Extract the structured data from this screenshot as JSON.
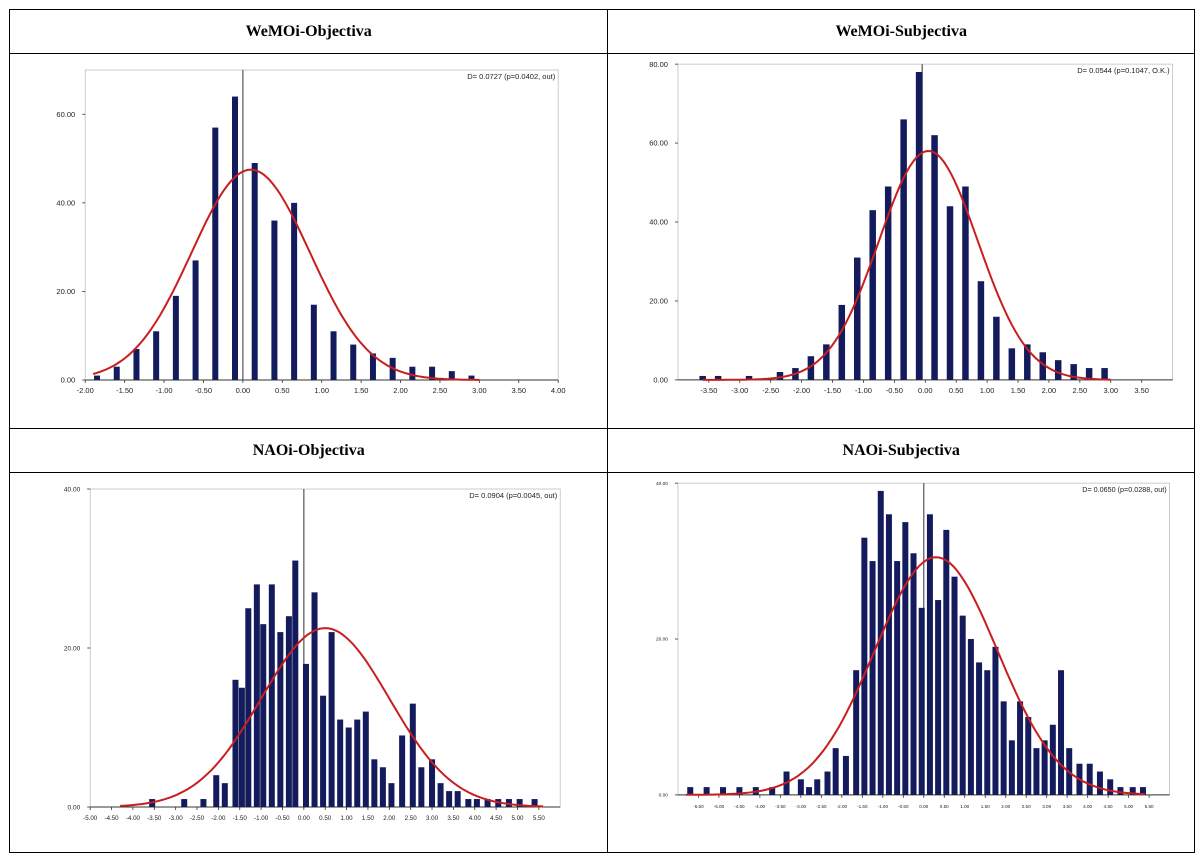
{
  "panels": [
    {
      "header": "WeMOi-Objectiva"
    },
    {
      "header": "WeMOi-Subjectiva"
    },
    {
      "header": "NAOi-Objectiva"
    },
    {
      "header": "NAOi-Subjectiva"
    }
  ],
  "chart_data": [
    {
      "type": "bar",
      "title": "WeMOi-Objectiva",
      "annotation": "D= 0.0727 (p=0.0402, out)",
      "xlim": [
        -2.0,
        4.0
      ],
      "ylim": [
        0,
        70
      ],
      "x_ticks": [
        "-2.00",
        "-1.50",
        "-1.00",
        "-0.50",
        "0.00",
        "0.50",
        "1.00",
        "1.50",
        "2.00",
        "2.50",
        "3.00",
        "3.50",
        "4.00"
      ],
      "y_ticks": [
        "0.00",
        "20.00",
        "40.00",
        "60.00"
      ],
      "vline_x": 0.0,
      "bar_x": [
        -1.85,
        -1.6,
        -1.35,
        -1.1,
        -0.85,
        -0.6,
        -0.35,
        -0.1,
        0.15,
        0.4,
        0.65,
        0.9,
        1.15,
        1.4,
        1.65,
        1.9,
        2.15,
        2.4,
        2.65,
        2.9,
        3.15
      ],
      "values": [
        1,
        3,
        7,
        11,
        19,
        27,
        57,
        64,
        49,
        36,
        40,
        17,
        11,
        8,
        6,
        5,
        3,
        3,
        2,
        1,
        0
      ],
      "fit_curve": {
        "type": "normal",
        "mean": 0.1,
        "sd": 0.75,
        "peak": 47.5,
        "x_range": [
          -1.9,
          3.0
        ]
      },
      "colors": {
        "bars": "#141b5c",
        "curve": "#c81e1e",
        "vline": "#555555"
      }
    },
    {
      "type": "bar",
      "title": "WeMOi-Subjectiva",
      "annotation": "D= 0.0544 (p=0.1047, O.K.)",
      "xlim": [
        -4.0,
        4.0
      ],
      "ylim": [
        0,
        80
      ],
      "x_ticks": [
        "-3.50",
        "-3.00",
        "-2.50",
        "-2.00",
        "-1.50",
        "-1.00",
        "-0.50",
        "0.00",
        "0.50",
        "1.00",
        "1.50",
        "2.00",
        "2.50",
        "3.00",
        "3.50"
      ],
      "y_ticks": [
        "0.00",
        "20.00",
        "40.00",
        "60.00",
        "80.00"
      ],
      "vline_x": -0.05,
      "bar_x": [
        -3.6,
        -3.35,
        -2.85,
        -2.35,
        -2.1,
        -1.85,
        -1.6,
        -1.35,
        -1.1,
        -0.85,
        -0.6,
        -0.35,
        -0.1,
        0.15,
        0.4,
        0.65,
        0.9,
        1.15,
        1.4,
        1.65,
        1.9,
        2.15,
        2.4,
        2.65,
        2.9
      ],
      "values": [
        1,
        1,
        1,
        2,
        3,
        6,
        9,
        19,
        31,
        43,
        49,
        66,
        78,
        62,
        44,
        49,
        25,
        16,
        8,
        9,
        7,
        5,
        4,
        3,
        3
      ],
      "fit_curve": {
        "type": "normal",
        "mean": 0.05,
        "sd": 0.8,
        "peak": 58,
        "x_range": [
          -3.6,
          3.0
        ]
      },
      "colors": {
        "bars": "#141b5c",
        "curve": "#c81e1e",
        "vline": "#555555"
      }
    },
    {
      "type": "bar",
      "title": "NAOi-Objectiva",
      "annotation": "D= 0.0904 (p=0.0045, out)",
      "xlim": [
        -5.0,
        6.0
      ],
      "ylim": [
        0,
        40
      ],
      "x_ticks": [
        "-5.00",
        "-4.50",
        "-4.00",
        "-3.50",
        "-3.00",
        "-2.50",
        "-2.00",
        "-1.50",
        "-1.00",
        "-0.50",
        "0.00",
        "0.50",
        "1.00",
        "1.50",
        "2.00",
        "2.50",
        "3.00",
        "3.50",
        "4.00",
        "4.50",
        "5.00",
        "5.50"
      ],
      "y_ticks": [
        "0.00",
        "20.00",
        "40.00"
      ],
      "vline_x": 0.0,
      "bar_x": [
        -3.55,
        -2.8,
        -2.35,
        -2.05,
        -1.85,
        -1.6,
        -1.45,
        -1.3,
        -1.1,
        -0.95,
        -0.75,
        -0.55,
        -0.35,
        -0.2,
        0.05,
        0.25,
        0.45,
        0.65,
        0.85,
        1.05,
        1.25,
        1.45,
        1.65,
        1.85,
        2.05,
        2.3,
        2.55,
        2.75,
        3.0,
        3.2,
        3.4,
        3.6,
        3.85,
        4.05,
        4.3,
        4.55,
        4.8,
        5.05,
        5.4
      ],
      "values": [
        1,
        1,
        1,
        4,
        3,
        16,
        15,
        25,
        28,
        23,
        28,
        22,
        24,
        31,
        18,
        27,
        14,
        22,
        11,
        10,
        11,
        12,
        6,
        5,
        3,
        9,
        13,
        5,
        6,
        3,
        2,
        2,
        1,
        1,
        1,
        1,
        1,
        1,
        1
      ],
      "fit_curve": {
        "type": "normal",
        "mean": 0.5,
        "sd": 1.5,
        "peak": 22.5,
        "x_range": [
          -4.3,
          5.6
        ]
      },
      "colors": {
        "bars": "#141b5c",
        "curve": "#c81e1e",
        "vline": "#555555"
      }
    },
    {
      "type": "bar",
      "title": "NAOi-Subjectiva",
      "annotation": "D= 0.0650 (p=0.0288, out)",
      "xlim": [
        -6.0,
        6.0
      ],
      "ylim": [
        0,
        40
      ],
      "x_ticks": [
        "-5.50",
        "-5.00",
        "-4.50",
        "-4.00",
        "-3.50",
        "-3.00",
        "-2.50",
        "-2.00",
        "-1.50",
        "-1.00",
        "-0.50",
        "0.00",
        "0.50",
        "1.00",
        "1.50",
        "2.00",
        "2.50",
        "3.00",
        "3.50",
        "4.00",
        "4.50",
        "5.00",
        "5.50"
      ],
      "y_ticks": [
        "0.00",
        "20.00",
        "40.00"
      ],
      "vline_x": 0.0,
      "bar_x": [
        -5.7,
        -5.3,
        -4.9,
        -4.5,
        -4.1,
        -3.7,
        -3.35,
        -3.0,
        -2.8,
        -2.6,
        -2.35,
        -2.15,
        -1.9,
        -1.65,
        -1.45,
        -1.25,
        -1.05,
        -0.85,
        -0.65,
        -0.45,
        -0.25,
        -0.05,
        0.15,
        0.35,
        0.55,
        0.75,
        0.95,
        1.15,
        1.35,
        1.55,
        1.75,
        1.95,
        2.15,
        2.35,
        2.55,
        2.75,
        2.95,
        3.15,
        3.35,
        3.55,
        3.8,
        4.05,
        4.3,
        4.55,
        4.8,
        5.1,
        5.35
      ],
      "values": [
        1,
        1,
        1,
        1,
        1,
        1,
        3,
        2,
        1,
        2,
        3,
        6,
        5,
        16,
        33,
        30,
        39,
        36,
        30,
        35,
        31,
        24,
        36,
        25,
        34,
        28,
        23,
        20,
        17,
        16,
        19,
        12,
        7,
        12,
        10,
        6,
        7,
        9,
        16,
        6,
        4,
        4,
        3,
        2,
        1,
        1,
        1
      ],
      "fit_curve": {
        "type": "normal",
        "mean": 0.3,
        "sd": 1.5,
        "peak": 30.5,
        "x_range": [
          -5.8,
          5.4
        ]
      },
      "colors": {
        "bars": "#141b5c",
        "curve": "#c81e1e",
        "vline": "#555555"
      }
    }
  ]
}
